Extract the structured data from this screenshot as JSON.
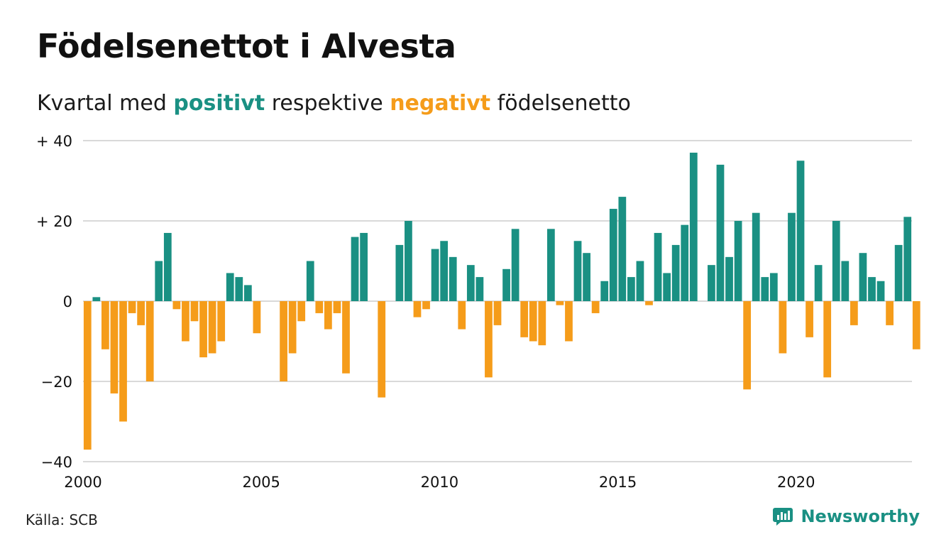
{
  "title": "Födelsenettot i Alvesta",
  "subtitle": {
    "prefix": "Kvartal med ",
    "positive_word": "positivt",
    "middle": " respektive ",
    "negative_word": "negativt",
    "suffix": " födelsenetto"
  },
  "source": "Källa: SCB",
  "brand": "Newsworthy",
  "colors": {
    "positive": "#1a9083",
    "negative": "#f59c1a",
    "grid": "#d9d9d9",
    "text": "#111111"
  },
  "chart_data": {
    "type": "bar",
    "x_start": 2000.0,
    "x_step": 0.25,
    "values": [
      -37,
      1,
      -12,
      -23,
      -30,
      -3,
      -6,
      -20,
      10,
      17,
      -2,
      -10,
      -5,
      -14,
      -13,
      -10,
      7,
      6,
      4,
      -8,
      0,
      0,
      -20,
      -13,
      -5,
      10,
      -3,
      -7,
      -3,
      -18,
      16,
      17,
      0,
      -24,
      0,
      14,
      20,
      -4,
      -2,
      13,
      15,
      11,
      -7,
      9,
      6,
      -19,
      -6,
      8,
      18,
      -9,
      -10,
      -11,
      18,
      -1,
      -10,
      15,
      12,
      -3,
      5,
      23,
      26,
      6,
      10,
      -1,
      17,
      7,
      14,
      19,
      37,
      0,
      9,
      34,
      11,
      20,
      -22,
      22,
      6,
      7,
      -13,
      22,
      35,
      -9,
      9,
      -19,
      20,
      10,
      -6,
      12,
      6,
      5,
      -6,
      14,
      21,
      -12
    ],
    "ylim": [
      -40,
      40
    ],
    "y_ticks": [
      -40,
      -20,
      0,
      20,
      40
    ],
    "y_tick_labels": [
      "−40",
      "−20",
      "0",
      "+ 20",
      "+ 40"
    ],
    "x_ticks": [
      2000,
      2005,
      2010,
      2015,
      2020
    ],
    "x_tick_labels": [
      "2000",
      "2005",
      "2010",
      "2015",
      "2020"
    ],
    "xlim": [
      2000,
      2023.25
    ],
    "grid": true
  }
}
